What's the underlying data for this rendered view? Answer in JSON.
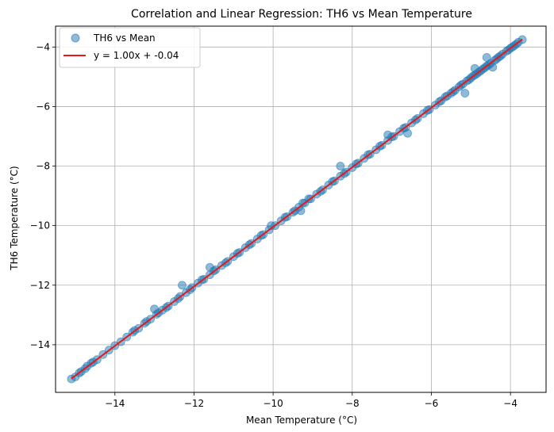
{
  "chart_data": {
    "type": "scatter",
    "title": "Correlation and Linear Regression: TH6 vs Mean Temperature",
    "xlabel": "Mean Temperature (°C)",
    "ylabel": "TH6 Temperature (°C)",
    "xlim": [
      -15.5,
      -3.1
    ],
    "ylim": [
      -15.6,
      -3.3
    ],
    "x_ticks": [
      -14,
      -12,
      -10,
      -8,
      -6,
      -4
    ],
    "y_ticks": [
      -14,
      -12,
      -10,
      -8,
      -6,
      -4
    ],
    "x_tick_labels": [
      "−14",
      "−12",
      "−10",
      "−8",
      "−6",
      "−4"
    ],
    "y_tick_labels": [
      "−14",
      "−12",
      "−10",
      "−8",
      "−6",
      "−4"
    ],
    "grid": true,
    "legend_position": "top-left",
    "series": [
      {
        "name": "TH6 vs Mean",
        "kind": "scatter",
        "color": "#1f77b4",
        "x": [
          -15.1,
          -14.9,
          -14.75,
          -14.6,
          -14.45,
          -14.3,
          -14.15,
          -14.0,
          -13.85,
          -13.7,
          -13.55,
          -13.4,
          -13.25,
          -13.1,
          -12.95,
          -12.8,
          -12.65,
          -12.5,
          -12.35,
          -12.2,
          -12.05,
          -11.9,
          -11.75,
          -11.6,
          -11.45,
          -11.3,
          -11.15,
          -11.0,
          -10.85,
          -10.7,
          -10.55,
          -10.4,
          -10.25,
          -10.1,
          -9.95,
          -9.8,
          -9.65,
          -9.5,
          -9.35,
          -9.2,
          -9.05,
          -8.9,
          -8.75,
          -8.6,
          -8.45,
          -8.3,
          -8.15,
          -8.0,
          -7.85,
          -7.7,
          -7.55,
          -7.4,
          -7.25,
          -7.1,
          -6.95,
          -6.8,
          -6.65,
          -6.5,
          -6.35,
          -6.2,
          -6.05,
          -5.9,
          -5.75,
          -5.6,
          -5.5,
          -5.4,
          -5.3,
          -5.2,
          -5.1,
          -5.0,
          -4.9,
          -4.8,
          -4.7,
          -4.6,
          -4.5,
          -4.4,
          -4.3,
          -4.2,
          -4.1,
          -4.0,
          -3.9,
          -3.8,
          -3.7,
          -15.0,
          -14.85,
          -14.7,
          -14.55,
          -13.5,
          -13.2,
          -12.9,
          -12.7,
          -12.4,
          -12.1,
          -11.8,
          -11.5,
          -11.2,
          -10.9,
          -10.6,
          -10.3,
          -9.7,
          -9.45,
          -9.25,
          -9.1,
          -8.8,
          -8.5,
          -8.2,
          -7.9,
          -7.6,
          -7.3,
          -7.0,
          -6.7,
          -6.4,
          -6.1,
          -5.8,
          -5.65,
          -5.45,
          -5.25,
          -5.05,
          -4.95,
          -4.85,
          -4.75,
          -4.65,
          -4.55,
          -4.35,
          -4.25,
          -4.05,
          -3.95,
          -3.85,
          -5.15,
          -4.9,
          -4.6,
          -4.45,
          -6.6,
          -7.1,
          -8.3,
          -9.3,
          -10.05,
          -13.0,
          -12.3,
          -11.6
        ],
        "y": [
          -15.15,
          -14.95,
          -14.8,
          -14.62,
          -14.5,
          -14.33,
          -14.18,
          -14.03,
          -13.9,
          -13.74,
          -13.58,
          -13.45,
          -13.28,
          -13.14,
          -12.98,
          -12.84,
          -12.7,
          -12.55,
          -12.38,
          -12.25,
          -12.08,
          -11.93,
          -11.8,
          -11.65,
          -11.48,
          -11.34,
          -11.2,
          -11.04,
          -10.9,
          -10.74,
          -10.6,
          -10.45,
          -10.3,
          -10.14,
          -10.0,
          -9.84,
          -9.7,
          -9.55,
          -9.38,
          -9.24,
          -9.1,
          -8.94,
          -8.8,
          -8.64,
          -8.5,
          -8.34,
          -8.2,
          -8.05,
          -7.9,
          -7.74,
          -7.6,
          -7.45,
          -7.3,
          -7.14,
          -7.0,
          -6.84,
          -6.7,
          -6.55,
          -6.4,
          -6.24,
          -6.1,
          -5.95,
          -5.8,
          -5.64,
          -5.55,
          -5.45,
          -5.34,
          -5.24,
          -5.14,
          -5.04,
          -4.94,
          -4.84,
          -4.74,
          -4.64,
          -4.55,
          -4.45,
          -4.34,
          -4.24,
          -4.14,
          -4.04,
          -3.95,
          -3.84,
          -3.75,
          -15.08,
          -14.9,
          -14.72,
          -14.58,
          -13.52,
          -13.22,
          -12.93,
          -12.75,
          -12.45,
          -12.15,
          -11.82,
          -11.52,
          -11.25,
          -10.93,
          -10.64,
          -10.33,
          -9.72,
          -9.5,
          -9.24,
          -9.1,
          -8.85,
          -8.52,
          -8.25,
          -7.93,
          -7.62,
          -7.33,
          -7.02,
          -6.73,
          -6.45,
          -6.13,
          -5.84,
          -5.68,
          -5.5,
          -5.28,
          -5.1,
          -4.98,
          -4.9,
          -4.8,
          -4.7,
          -4.6,
          -4.4,
          -4.3,
          -4.1,
          -4.0,
          -3.9,
          -5.55,
          -4.72,
          -4.35,
          -4.68,
          -6.9,
          -6.95,
          -8.0,
          -9.5,
          -10.0,
          -12.8,
          -12.0,
          -11.4
        ]
      },
      {
        "name": "y = 1.00x + -0.04",
        "kind": "line",
        "color": "#e31a1c",
        "x": [
          -15.1,
          -3.7
        ],
        "y": [
          -15.14,
          -3.74
        ]
      }
    ]
  }
}
